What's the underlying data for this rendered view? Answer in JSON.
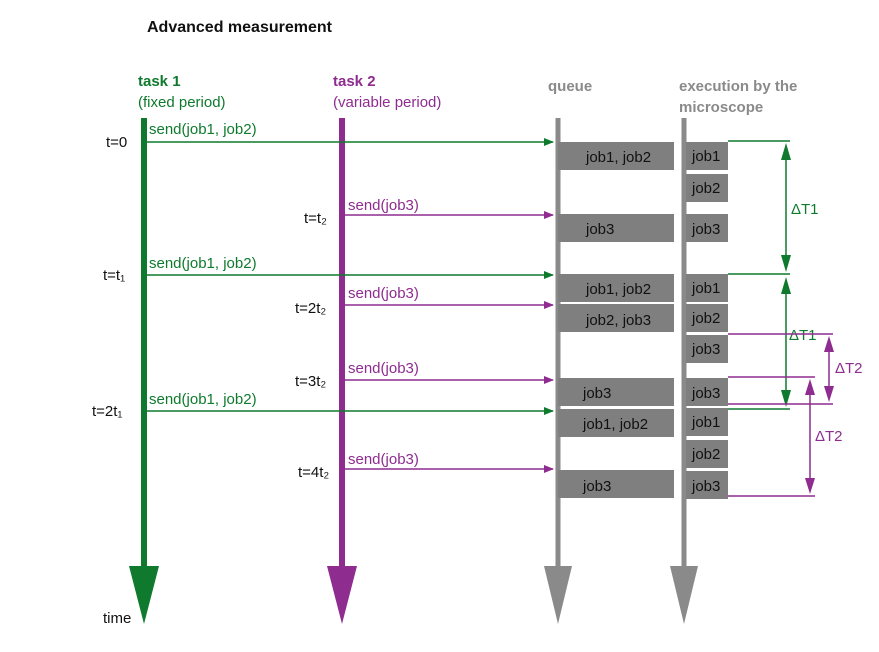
{
  "title": "Advanced measurement",
  "colors": {
    "green": "#0f7a2e",
    "purple": "#8e2c8f",
    "gray": "#8a8a8a",
    "box": "#7f7f7f"
  },
  "columns": {
    "task1": {
      "title": "task 1",
      "subtitle": "(fixed period)"
    },
    "task2": {
      "title": "task 2",
      "subtitle": "(variable period)"
    },
    "queue": {
      "title": "queue"
    },
    "exec": {
      "title_line1": "execution by the",
      "title_line2": "microscope"
    }
  },
  "time_labels": {
    "t0": "t=0",
    "t1": "t=t₁",
    "t2t1": "t=2t₁",
    "tt2": "t=t₂",
    "t2t2": "t=2t₂",
    "t3t2": "t=3t₂",
    "t4t2": "t=4t₂",
    "time": "time"
  },
  "sends": {
    "s1": "send(job1, job2)",
    "s2": "send(job3)",
    "s3": "send(job1, job2)",
    "s4": "send(job3)",
    "s5": "send(job3)",
    "s6": "send(job1, job2)",
    "s7": "send(job3)"
  },
  "queue_jobs": {
    "q1": "job1, job2",
    "q2": "job3",
    "q3": "job1, job2",
    "q4": "job2, job3",
    "q5": "job3",
    "q6": "job1, job2",
    "q7": "job3"
  },
  "exec_jobs": {
    "e1": "job1",
    "e2": "job2",
    "e3": "job3",
    "e4": "job1",
    "e5": "job2",
    "e6": "job3",
    "e7": "job3",
    "e8": "job1",
    "e9": "job2",
    "e10": "job3"
  },
  "intervals": {
    "dT1a": "ΔT1",
    "dT1b": "ΔT1",
    "dT2a": "ΔT2",
    "dT2b": "ΔT2"
  }
}
